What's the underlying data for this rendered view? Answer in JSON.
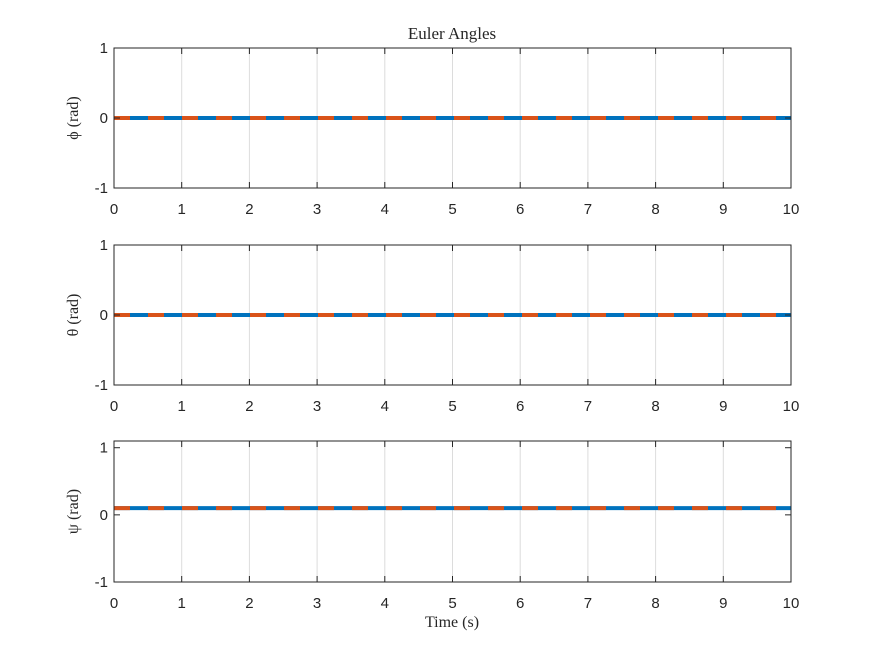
{
  "figure": {
    "title": "Euler Angles",
    "xlabel": "Time (s)"
  },
  "colors": {
    "background": "#ffffff",
    "axes_box": "#262626",
    "grid": "#dcdcdc",
    "series_1": "#0072BD",
    "series_2": "#D95319"
  },
  "chart_data": [
    {
      "type": "line",
      "ylabel": "ϕ (rad)",
      "xlim": [
        0,
        10
      ],
      "ylim": [
        -1,
        1
      ],
      "x_ticks": [
        0,
        1,
        2,
        3,
        4,
        5,
        6,
        7,
        8,
        9,
        10
      ],
      "y_ticks": [
        -1,
        0,
        1
      ],
      "grid": "vertical",
      "series": [
        {
          "x": [
            0,
            10
          ],
          "y": [
            0,
            0
          ],
          "style": "solid",
          "color": "#0072BD"
        },
        {
          "x": [
            0,
            10
          ],
          "y": [
            0,
            0
          ],
          "style": "dashed",
          "color": "#D95319"
        }
      ]
    },
    {
      "type": "line",
      "ylabel": "θ (rad)",
      "xlim": [
        0,
        10
      ],
      "ylim": [
        -1,
        1
      ],
      "x_ticks": [
        0,
        1,
        2,
        3,
        4,
        5,
        6,
        7,
        8,
        9,
        10
      ],
      "y_ticks": [
        -1,
        0,
        1
      ],
      "grid": "vertical",
      "series": [
        {
          "x": [
            0,
            10
          ],
          "y": [
            0,
            0
          ],
          "style": "solid",
          "color": "#0072BD"
        },
        {
          "x": [
            0,
            10
          ],
          "y": [
            0,
            0
          ],
          "style": "dashed",
          "color": "#D95319"
        }
      ]
    },
    {
      "type": "line",
      "ylabel": "ψ (rad)",
      "xlim": [
        0,
        10
      ],
      "ylim": [
        -1,
        1.1
      ],
      "x_ticks": [
        0,
        1,
        2,
        3,
        4,
        5,
        6,
        7,
        8,
        9,
        10
      ],
      "y_ticks": [
        -1,
        0,
        1
      ],
      "grid": "vertical",
      "series": [
        {
          "x": [
            0,
            10
          ],
          "y": [
            0.1,
            0.1
          ],
          "style": "solid",
          "color": "#0072BD"
        },
        {
          "x": [
            0,
            10
          ],
          "y": [
            0.1,
            0.1
          ],
          "style": "dashed",
          "color": "#D95319"
        }
      ]
    }
  ]
}
